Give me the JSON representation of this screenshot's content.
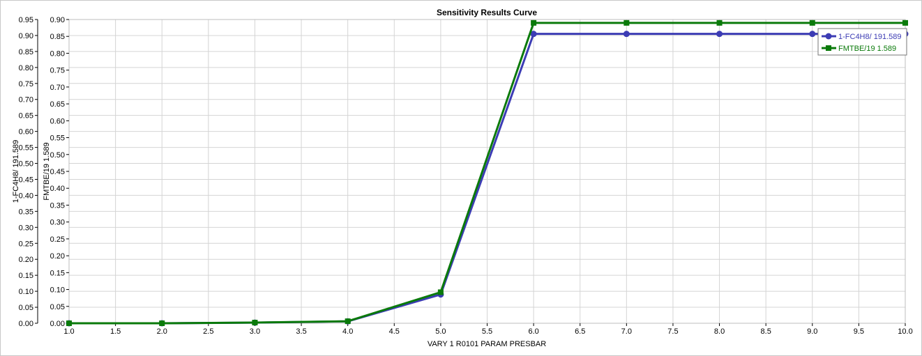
{
  "chart_data": {
    "type": "line",
    "title": "Sensitivity Results Curve",
    "xlabel": "VARY   1 R0101 PARAM PRESBAR",
    "ylabel_outer": "1-FC4H8/ 191.589",
    "ylabel_inner": "FMTBE/19 1.589",
    "x": [
      1,
      2,
      3,
      4,
      5,
      6,
      7,
      8,
      9,
      10
    ],
    "xlim": [
      1,
      10
    ],
    "xticks": [
      "1.0",
      "1.5",
      "2.0",
      "2.5",
      "3.0",
      "3.5",
      "4.0",
      "4.5",
      "5.0",
      "5.5",
      "6.0",
      "6.5",
      "7.0",
      "7.5",
      "8.0",
      "8.5",
      "9.0",
      "9.5",
      "10.0"
    ],
    "y_outer_lim": [
      0,
      0.95
    ],
    "y_inner_lim": [
      0,
      0.9
    ],
    "y_outer_ticks": [
      "0.00",
      "0.05",
      "0.10",
      "0.15",
      "0.20",
      "0.25",
      "0.30",
      "0.35",
      "0.40",
      "0.45",
      "0.50",
      "0.55",
      "0.60",
      "0.65",
      "0.70",
      "0.75",
      "0.80",
      "0.85",
      "0.90",
      "0.95"
    ],
    "y_inner_ticks": [
      "0.00",
      "0.05",
      "0.10",
      "0.15",
      "0.20",
      "0.25",
      "0.30",
      "0.35",
      "0.40",
      "0.45",
      "0.50",
      "0.55",
      "0.60",
      "0.65",
      "0.70",
      "0.75",
      "0.80",
      "0.85",
      "0.90"
    ],
    "grid": true,
    "legend_position": "top-right",
    "series": [
      {
        "name": "1-FC4H8/ 191.589",
        "axis": "outer",
        "color": "#3c3cb4",
        "marker": "circle",
        "values": [
          0.0,
          0.0,
          0.002,
          0.006,
          0.09,
          0.905,
          0.905,
          0.905,
          0.905,
          0.905
        ]
      },
      {
        "name": "FMTBE/19 1.589",
        "axis": "inner",
        "color": "#0a7a0a",
        "marker": "square",
        "values": [
          0.0,
          0.0,
          0.002,
          0.006,
          0.092,
          0.89,
          0.89,
          0.89,
          0.89,
          0.89
        ]
      }
    ]
  }
}
